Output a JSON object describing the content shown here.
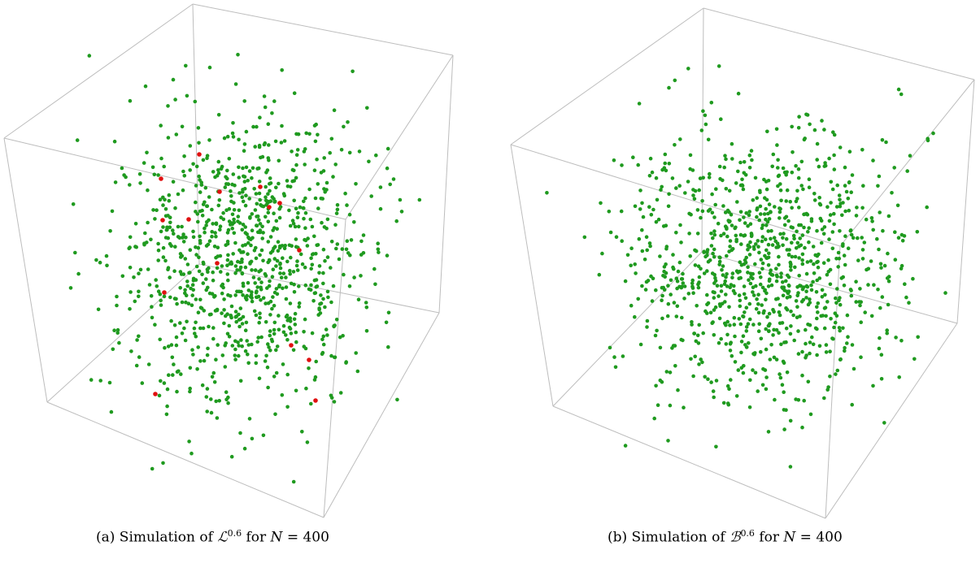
{
  "figure": {
    "panels": [
      {
        "id": "a",
        "caption_prefix": "(a) Simulation of ",
        "caption_symbol": "ℒ",
        "caption_exponent": "0.6",
        "caption_middle": " for ",
        "caption_var": "N",
        "caption_rest": " = 400",
        "colors": {
          "points": "#1f9a1f",
          "highlighted": "#e01010",
          "box": "#bdbdbd"
        }
      },
      {
        "id": "b",
        "caption_prefix": "(b) Simulation of ",
        "caption_symbol": "ℬ",
        "caption_exponent": "0.6",
        "caption_middle": " for ",
        "caption_var": "N",
        "caption_rest": " = 400",
        "colors": {
          "points": "#1f9a1f",
          "box": "#bdbdbd"
        }
      }
    ]
  }
}
